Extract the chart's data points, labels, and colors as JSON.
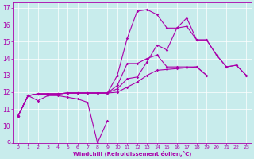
{
  "xlabel": "Windchill (Refroidissement éolien,°C)",
  "background_color": "#c8ecec",
  "grid_color": "#ffffff",
  "line_color": "#aa00aa",
  "xlim": [
    -0.5,
    23.5
  ],
  "ylim": [
    9,
    17.3
  ],
  "xticks": [
    0,
    1,
    2,
    3,
    4,
    5,
    6,
    7,
    8,
    9,
    10,
    11,
    12,
    13,
    14,
    15,
    16,
    17,
    18,
    19,
    20,
    21,
    22,
    23
  ],
  "yticks": [
    9,
    10,
    11,
    12,
    13,
    14,
    15,
    16,
    17
  ],
  "series": [
    [
      10.6,
      11.8,
      11.5,
      11.8,
      11.8,
      11.7,
      11.6,
      11.4,
      9.0,
      10.3,
      null,
      null,
      null,
      null,
      null,
      null,
      null,
      null,
      null,
      null,
      null,
      null,
      null,
      null
    ],
    [
      10.6,
      11.8,
      11.9,
      11.9,
      11.9,
      11.95,
      11.95,
      11.95,
      11.95,
      11.95,
      12.0,
      12.3,
      12.6,
      13.0,
      13.3,
      13.35,
      13.4,
      13.45,
      13.5,
      13.0,
      null,
      null,
      null,
      null
    ],
    [
      10.6,
      11.8,
      11.9,
      11.9,
      11.9,
      11.95,
      11.95,
      11.95,
      11.95,
      11.95,
      12.4,
      13.7,
      13.7,
      14.0,
      14.2,
      13.5,
      13.5,
      13.5,
      13.5,
      13.0,
      null,
      null,
      null,
      null
    ],
    [
      10.6,
      11.8,
      11.9,
      11.9,
      11.9,
      11.95,
      11.95,
      11.95,
      11.95,
      11.95,
      13.0,
      15.2,
      16.8,
      16.9,
      16.6,
      15.8,
      15.8,
      16.4,
      15.1,
      15.1,
      14.2,
      13.5,
      13.6,
      13.0
    ],
    [
      10.6,
      11.8,
      11.9,
      11.9,
      11.9,
      11.95,
      11.95,
      11.95,
      11.95,
      11.95,
      12.2,
      12.8,
      12.9,
      13.8,
      14.8,
      14.5,
      15.8,
      15.9,
      15.1,
      15.1,
      14.2,
      13.5,
      13.6,
      13.0
    ]
  ]
}
